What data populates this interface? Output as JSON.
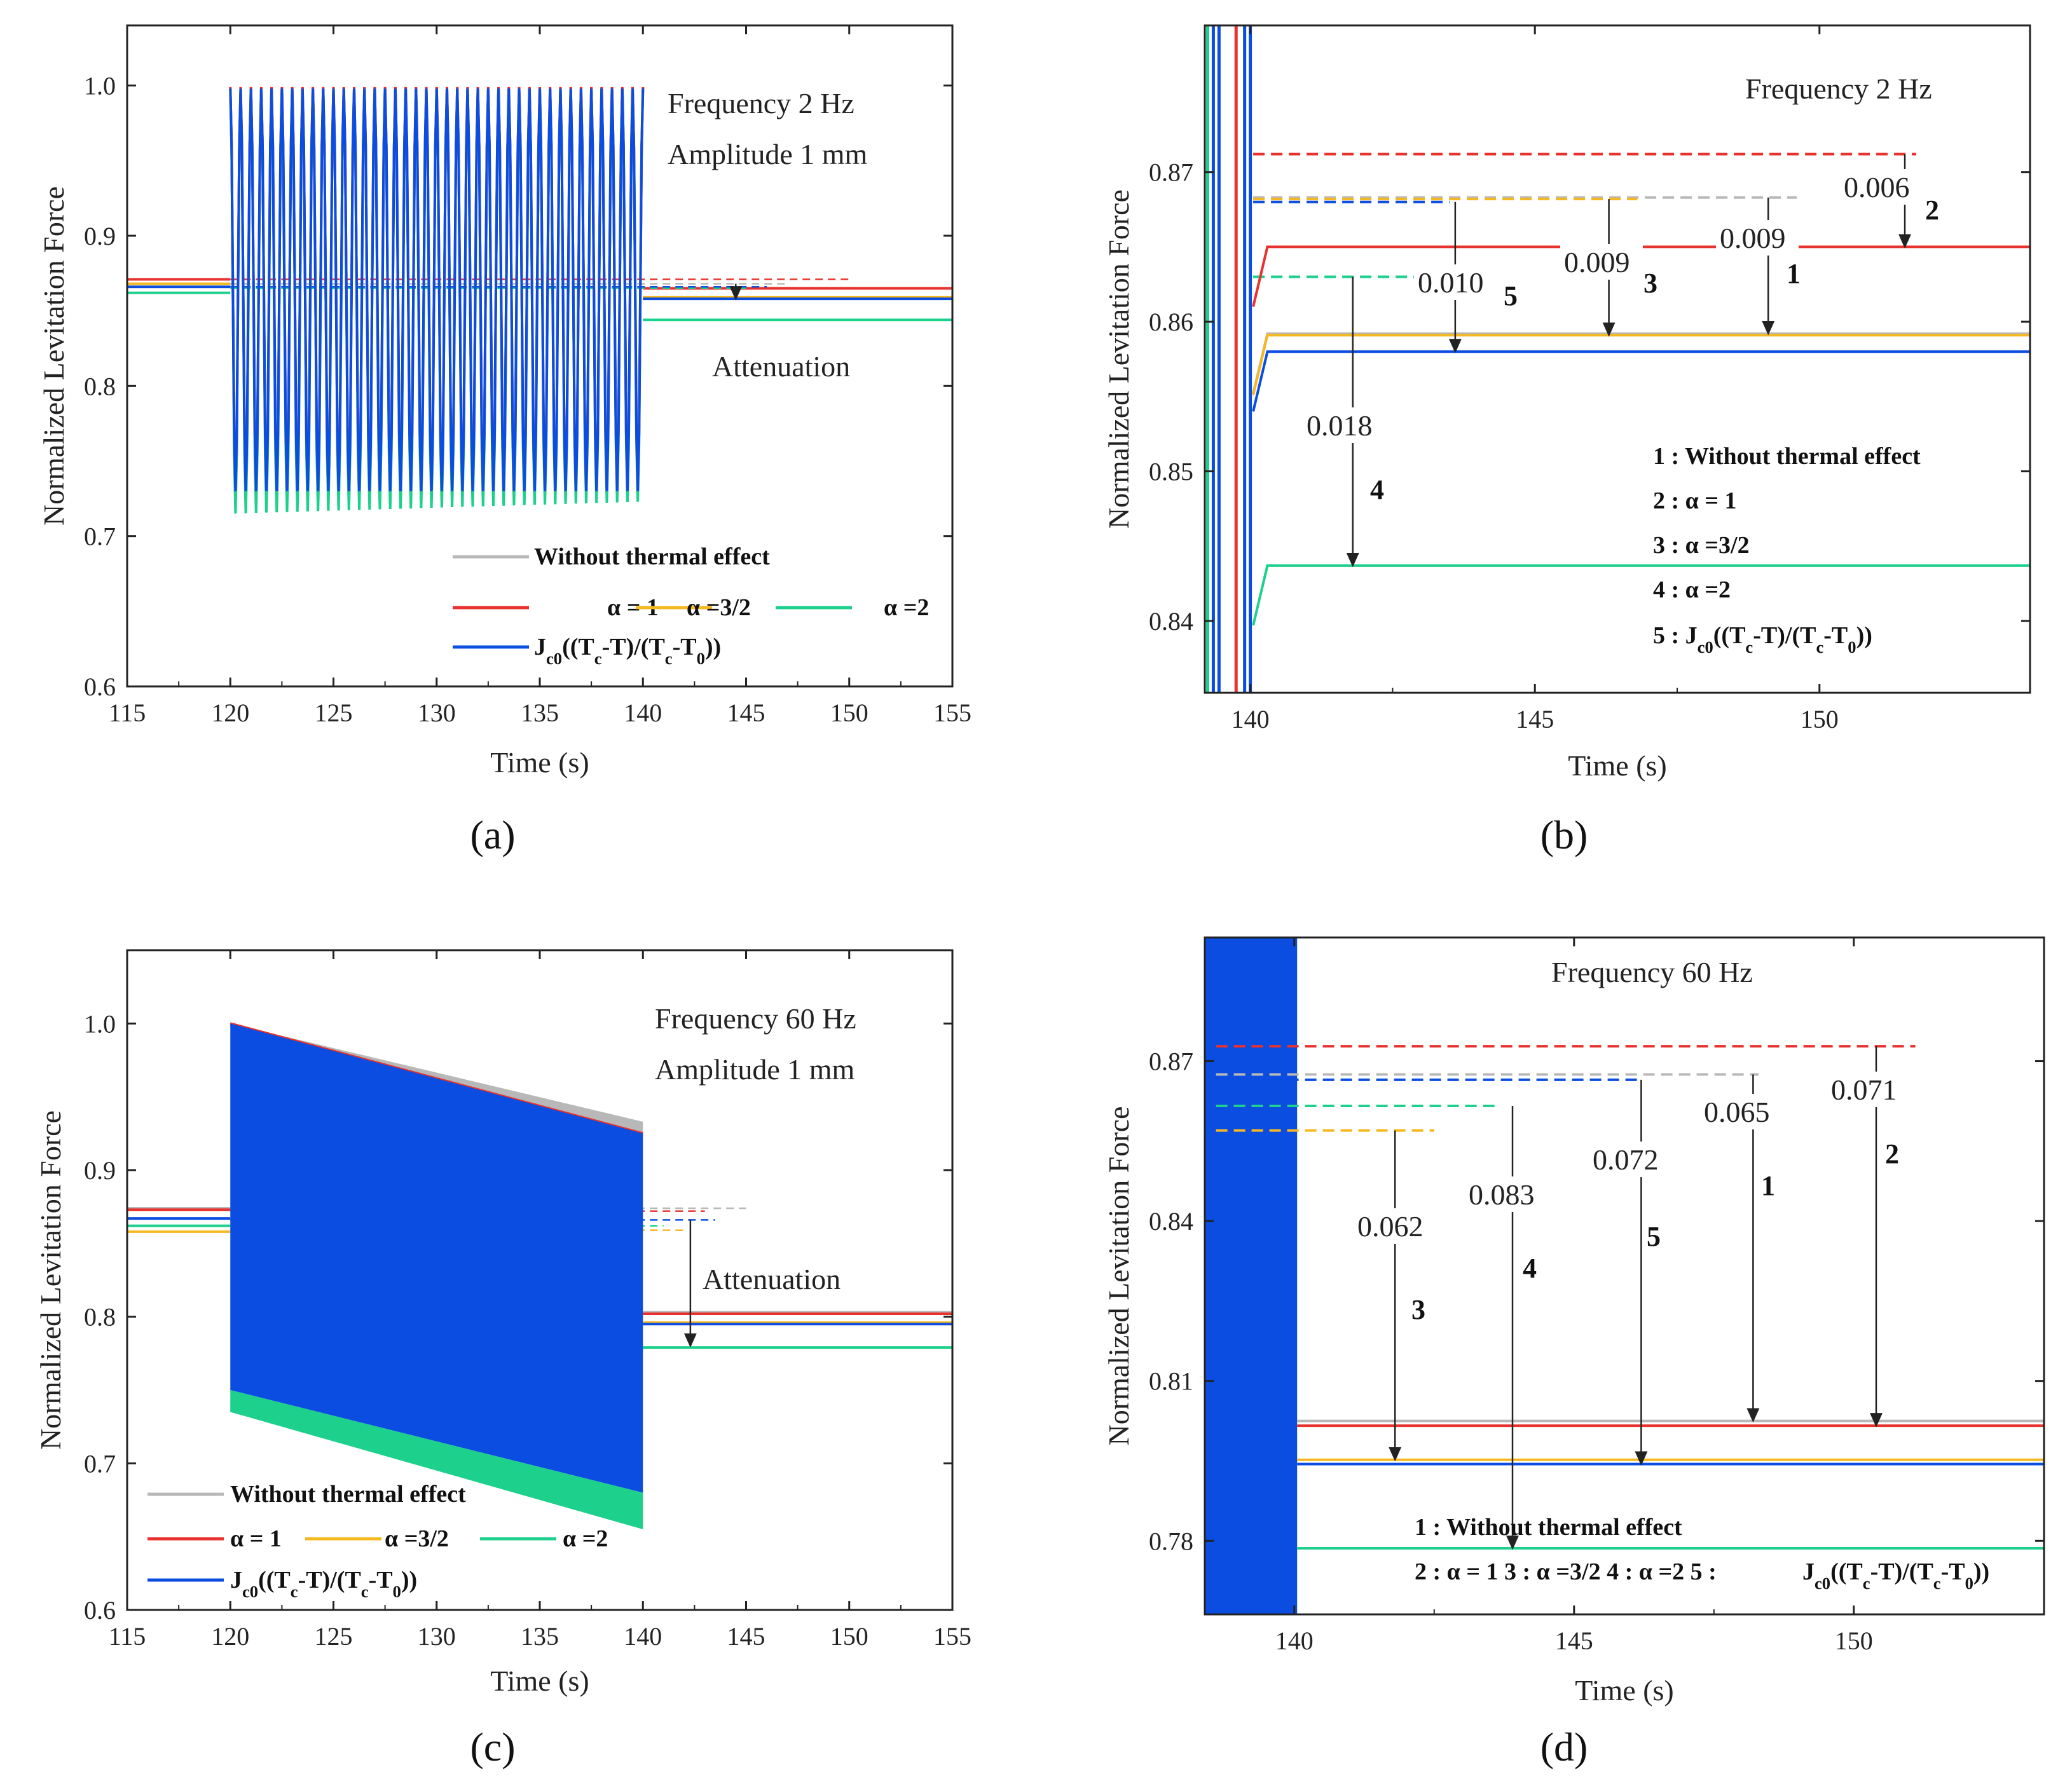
{
  "colors": {
    "without": "#b8b8b8",
    "alpha1": "#e8322e",
    "alpha32": "#f5b820",
    "alpha2": "#1dd08c",
    "jc0": "#0b4de0",
    "axis": "#222222"
  },
  "chart_data": [
    {
      "panel": "(a)",
      "type": "line",
      "xlabel": "Time (s)",
      "ylabel": "Normalized Levitation Force",
      "xlim": [
        115,
        155
      ],
      "ylim": [
        0.6,
        1.04
      ],
      "xticks": [
        115,
        120,
        125,
        130,
        135,
        140,
        145,
        150,
        155
      ],
      "yticks": [
        0.6,
        0.7,
        0.8,
        0.9,
        1.0
      ],
      "ytick_labels": [
        "0.6",
        "0.7",
        "0.8",
        "0.9",
        "1.0"
      ],
      "annotations": [
        "Frequency 2 Hz",
        "Amplitude 1 mm",
        "Attenuation"
      ],
      "legend": [
        "Without thermal effect",
        "α = 1",
        "α =3/2",
        "α =2",
        "Jc0((Tc-T)/(Tc-T0))"
      ],
      "oscillation": {
        "start": 120,
        "end": 140,
        "cycles": 40,
        "top": 0.998,
        "bottom_blue": 0.73,
        "bottom_green": 0.725
      },
      "series": [
        {
          "name": "Without thermal effect",
          "color_key": "without",
          "before": 0.868,
          "after": 0.859
        },
        {
          "name": "α = 1",
          "color_key": "alpha1",
          "before": 0.871,
          "after": 0.865
        },
        {
          "name": "α =3/2",
          "color_key": "alpha32",
          "before": 0.868,
          "after": 0.859
        },
        {
          "name": "α =2",
          "color_key": "alpha2",
          "before": 0.862,
          "after": 0.844
        },
        {
          "name": "Jc0((Tc-T)/(Tc-T0))",
          "color_key": "jc0",
          "before": 0.866,
          "after": 0.858
        }
      ]
    },
    {
      "panel": "(b)",
      "type": "line",
      "xlabel": "Time (s)",
      "ylabel": "Normalized Levitation Force",
      "xlim": [
        139.2,
        153.7
      ],
      "ylim": [
        0.8352,
        0.8798
      ],
      "xticks": [
        140,
        145,
        150
      ],
      "yticks": [
        0.84,
        0.85,
        0.86,
        0.87
      ],
      "ytick_labels": [
        "0.84",
        "0.85",
        "0.86",
        "0.87"
      ],
      "annotations": [
        "Frequency 2 Hz"
      ],
      "differences": [
        {
          "label": "0.006",
          "index": "2"
        },
        {
          "label": "0.009",
          "index": "3"
        },
        {
          "label": "0.009",
          "index": "1"
        },
        {
          "label": "0.010",
          "index": "5"
        },
        {
          "label": "0.018",
          "index": "4"
        }
      ],
      "key": [
        "1 : Without thermal effect",
        "2 : α = 1",
        "3 : α =3/2",
        "4 : α =2",
        "5 : Jc0((Tc-T)/(Tc-T0))"
      ],
      "series": [
        {
          "name": "Without thermal effect",
          "color_key": "without",
          "reference": 0.8683,
          "steady": 0.8592
        },
        {
          "name": "α = 1",
          "color_key": "alpha1",
          "reference": 0.8712,
          "steady": 0.865
        },
        {
          "name": "α =3/2",
          "color_key": "alpha32",
          "reference": 0.8682,
          "steady": 0.8591
        },
        {
          "name": "α =2",
          "color_key": "alpha2",
          "reference": 0.863,
          "steady": 0.8437
        },
        {
          "name": "Jc0((Tc-T)/(Tc-T0))",
          "color_key": "jc0",
          "reference": 0.868,
          "steady": 0.858
        }
      ]
    },
    {
      "panel": "(c)",
      "type": "line",
      "xlabel": "Time (s)",
      "ylabel": "Normalized Levitation Force",
      "xlim": [
        115,
        155
      ],
      "ylim": [
        0.6,
        1.05
      ],
      "xticks": [
        115,
        120,
        125,
        130,
        135,
        140,
        145,
        150,
        155
      ],
      "yticks": [
        0.6,
        0.7,
        0.8,
        0.9,
        1.0
      ],
      "ytick_labels": [
        "0.6",
        "0.7",
        "0.8",
        "0.9",
        "1.0"
      ],
      "annotations": [
        "Frequency 60 Hz",
        "Amplitude 1 mm",
        "Attenuation"
      ],
      "legend": [
        "Without thermal effect",
        "α = 1",
        "α =3/2",
        "α =2",
        "Jc0((Tc-T)/(Tc-T0))"
      ],
      "envelope": {
        "start": 120,
        "end": 140,
        "top_start": 1.0,
        "top_end": 0.925,
        "blue_bottom_start": 0.75,
        "blue_bottom_end": 0.68,
        "green_bottom_start": 0.735,
        "green_bottom_end": 0.655
      },
      "series": [
        {
          "name": "Without thermal effect",
          "color_key": "without",
          "before": 0.874,
          "after": 0.803
        },
        {
          "name": "α = 1",
          "color_key": "alpha1",
          "before": 0.873,
          "after": 0.802
        },
        {
          "name": "α =3/2",
          "color_key": "alpha32",
          "before": 0.858,
          "after": 0.796
        },
        {
          "name": "α =2",
          "color_key": "alpha2",
          "before": 0.862,
          "after": 0.779
        },
        {
          "name": "Jc0((Tc-T)/(Tc-T0))",
          "color_key": "jc0",
          "before": 0.867,
          "after": 0.795
        }
      ]
    },
    {
      "panel": "(d)",
      "type": "line",
      "xlabel": "Time (s)",
      "ylabel": "Normalized Levitation Force",
      "xlim": [
        138.4,
        153.4
      ],
      "ylim": [
        0.7662,
        0.8932
      ],
      "xticks": [
        140,
        145,
        150
      ],
      "yticks": [
        0.78,
        0.81,
        0.84,
        0.87
      ],
      "ytick_labels": [
        "0.78",
        "0.81",
        "0.84",
        "0.87"
      ],
      "annotations": [
        "Frequency 60 Hz"
      ],
      "differences": [
        {
          "label": "0.062",
          "index": "3"
        },
        {
          "label": "0.083",
          "index": "4"
        },
        {
          "label": "0.072",
          "index": "5"
        },
        {
          "label": "0.065",
          "index": "1"
        },
        {
          "label": "0.071",
          "index": "2"
        }
      ],
      "key": [
        "1 : Without thermal effect",
        "2 : α = 1     3 : α =3/2     4 : α =2     5 : Jc0((Tc-T)/(Tc-T0))"
      ],
      "series": [
        {
          "name": "Without thermal effect",
          "color_key": "without",
          "reference": 0.8675,
          "steady": 0.8025
        },
        {
          "name": "α = 1",
          "color_key": "alpha1",
          "reference": 0.8728,
          "steady": 0.8016
        },
        {
          "name": "α =3/2",
          "color_key": "alpha32",
          "reference": 0.857,
          "steady": 0.7952
        },
        {
          "name": "α =2",
          "color_key": "alpha2",
          "reference": 0.8616,
          "steady": 0.7786
        },
        {
          "name": "Jc0((Tc-T)/(Tc-T0))",
          "color_key": "jc0",
          "reference": 0.8665,
          "steady": 0.7944
        }
      ]
    }
  ],
  "panel_labels": [
    "(a)",
    "(b)",
    "(c)",
    "(d)"
  ]
}
